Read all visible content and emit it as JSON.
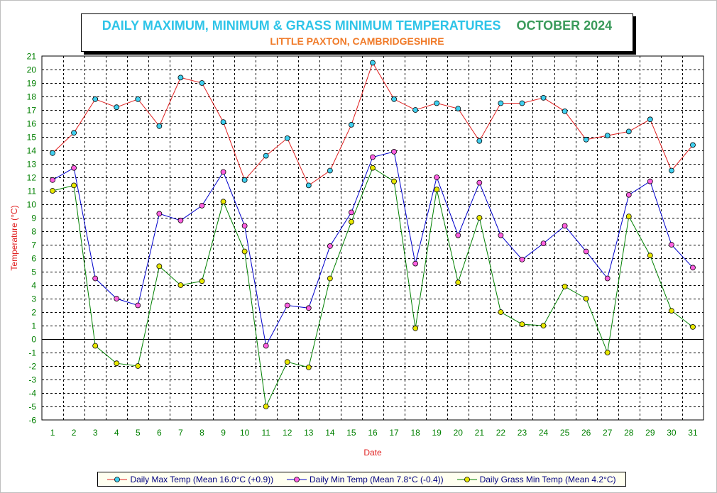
{
  "title": {
    "main": "DAILY MAXIMUM, MINIMUM & GRASS MINIMUM TEMPERATURES",
    "month": "OCTOBER 2024",
    "subtitle": "LITTLE PAXTON, CAMBRIDGESHIRE"
  },
  "colors": {
    "max_line": "#e02020",
    "max_marker": "#40d0f0",
    "min_line": "#0000cc",
    "min_marker": "#ff60e0",
    "grass_line": "#008000",
    "grass_marker": "#e8e800",
    "axis_label": "#e02020",
    "tick_label": "#008000"
  },
  "chart_data": {
    "type": "line",
    "xlabel": "Date",
    "ylabel": "Temperature (°C)",
    "ylim": [
      -6,
      21
    ],
    "grid": true,
    "legend_position": "bottom",
    "x": [
      1,
      2,
      3,
      4,
      5,
      6,
      7,
      8,
      9,
      10,
      11,
      12,
      13,
      14,
      15,
      16,
      17,
      18,
      19,
      20,
      21,
      22,
      23,
      24,
      25,
      26,
      27,
      28,
      29,
      30,
      31
    ],
    "series": [
      {
        "name": "Daily Max Temp (Mean 16.0°C (+0.9))",
        "key": "max",
        "values": [
          13.8,
          15.3,
          17.8,
          17.2,
          17.8,
          15.8,
          19.4,
          19.0,
          16.1,
          11.8,
          13.6,
          14.9,
          11.4,
          12.5,
          15.9,
          20.5,
          17.8,
          17.0,
          17.5,
          17.1,
          14.7,
          17.5,
          17.5,
          17.9,
          16.9,
          14.8,
          15.1,
          15.4,
          16.3,
          12.5,
          14.4
        ]
      },
      {
        "name": "Daily Min Temp (Mean 7.8°C (-0.4))",
        "key": "min",
        "values": [
          11.8,
          12.7,
          4.5,
          3.0,
          2.5,
          9.3,
          8.8,
          9.9,
          12.4,
          8.4,
          -0.5,
          2.5,
          2.3,
          6.9,
          9.4,
          13.5,
          13.9,
          5.6,
          12.0,
          7.7,
          11.6,
          7.7,
          5.9,
          7.1,
          8.4,
          6.5,
          4.5,
          10.7,
          11.7,
          7.0,
          5.3
        ]
      },
      {
        "name": "Daily Grass Min Temp (Mean 4.2°C)",
        "key": "grass",
        "values": [
          11.0,
          11.4,
          -0.5,
          -1.8,
          -2.0,
          5.4,
          4.0,
          4.3,
          10.2,
          6.5,
          -5.0,
          -1.7,
          -2.1,
          4.5,
          8.7,
          12.7,
          11.7,
          0.8,
          11.1,
          4.2,
          9.0,
          2.0,
          1.1,
          1.0,
          3.9,
          3.0,
          -1.0,
          9.1,
          6.2,
          2.1,
          0.9
        ]
      }
    ]
  }
}
